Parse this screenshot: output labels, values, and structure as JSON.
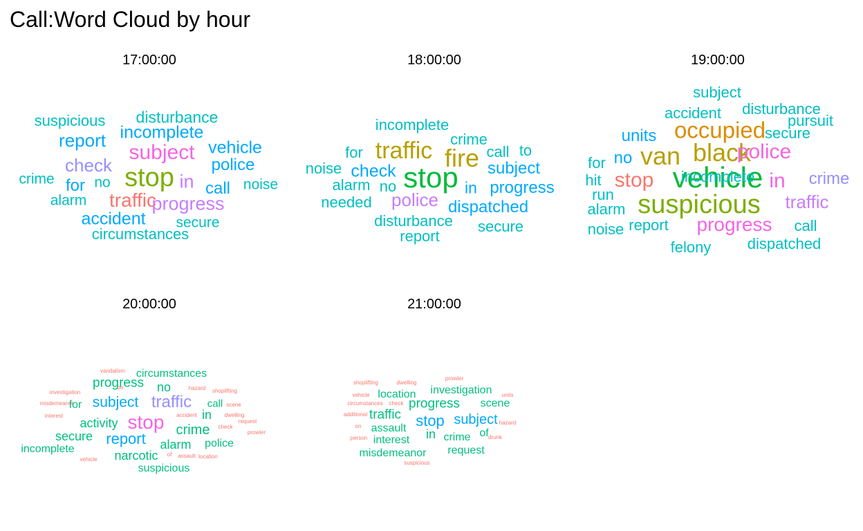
{
  "title": "Call:Word Cloud by hour",
  "chart_data": {
    "type": "word_cloud",
    "title": "Call:Word Cloud by hour",
    "panels": [
      {
        "label": "17:00:00",
        "words": [
          {
            "text": "stop",
            "color": "#7CAE00",
            "weight": 38
          },
          {
            "text": "subject",
            "color": "#F564E3",
            "weight": 30
          },
          {
            "text": "traffic",
            "color": "#F8766D",
            "weight": 28
          },
          {
            "text": "progress",
            "color": "#C77CFF",
            "weight": 27
          },
          {
            "text": "in",
            "color": "#C77CFF",
            "weight": 27
          },
          {
            "text": "check",
            "color": "#9590FF",
            "weight": 26
          },
          {
            "text": "report",
            "color": "#00A9FF",
            "weight": 26
          },
          {
            "text": "incomplete",
            "color": "#00A9FF",
            "weight": 25
          },
          {
            "text": "vehicle",
            "color": "#00A9FF",
            "weight": 25
          },
          {
            "text": "accident",
            "color": "#00A9FF",
            "weight": 25
          },
          {
            "text": "police",
            "color": "#00A9FF",
            "weight": 24
          },
          {
            "text": "call",
            "color": "#00A9FF",
            "weight": 24
          },
          {
            "text": "for",
            "color": "#00A9FF",
            "weight": 24
          },
          {
            "text": "disturbance",
            "color": "#00BFC4",
            "weight": 23
          },
          {
            "text": "suspicious",
            "color": "#00BFC4",
            "weight": 22
          },
          {
            "text": "circumstances",
            "color": "#00BFC4",
            "weight": 22
          },
          {
            "text": "secure",
            "color": "#00BFC4",
            "weight": 21
          },
          {
            "text": "noise",
            "color": "#00BFC4",
            "weight": 21
          },
          {
            "text": "crime",
            "color": "#00BFC4",
            "weight": 21
          },
          {
            "text": "alarm",
            "color": "#00BFC4",
            "weight": 21
          },
          {
            "text": "no",
            "color": "#00BFC4",
            "weight": 21
          }
        ]
      },
      {
        "label": "18:00:00",
        "words": [
          {
            "text": "stop",
            "color": "#00BA38",
            "weight": 42
          },
          {
            "text": "fire",
            "color": "#B79F00",
            "weight": 36
          },
          {
            "text": "traffic",
            "color": "#B79F00",
            "weight": 34
          },
          {
            "text": "police",
            "color": "#C77CFF",
            "weight": 26
          },
          {
            "text": "check",
            "color": "#00A9FF",
            "weight": 25
          },
          {
            "text": "dispatched",
            "color": "#00A9FF",
            "weight": 24
          },
          {
            "text": "progress",
            "color": "#00A9FF",
            "weight": 24
          },
          {
            "text": "subject",
            "color": "#00A9FF",
            "weight": 24
          },
          {
            "text": "in",
            "color": "#00A9FF",
            "weight": 23
          },
          {
            "text": "incomplete",
            "color": "#00BFC4",
            "weight": 22
          },
          {
            "text": "crime",
            "color": "#00BFC4",
            "weight": 22
          },
          {
            "text": "call",
            "color": "#00BFC4",
            "weight": 22
          },
          {
            "text": "to",
            "color": "#00BFC4",
            "weight": 22
          },
          {
            "text": "for",
            "color": "#00BFC4",
            "weight": 22
          },
          {
            "text": "noise",
            "color": "#00BFC4",
            "weight": 22
          },
          {
            "text": "alarm",
            "color": "#00BFC4",
            "weight": 22
          },
          {
            "text": "no",
            "color": "#00BFC4",
            "weight": 22
          },
          {
            "text": "needed",
            "color": "#00BFC4",
            "weight": 22
          },
          {
            "text": "disturbance",
            "color": "#00BFC4",
            "weight": 22
          },
          {
            "text": "secure",
            "color": "#00BFC4",
            "weight": 22
          },
          {
            "text": "report",
            "color": "#00BFC4",
            "weight": 22
          }
        ]
      },
      {
        "label": "19:00:00",
        "words": [
          {
            "text": "vehicle",
            "color": "#00BA38",
            "weight": 42
          },
          {
            "text": "suspicious",
            "color": "#7CAE00",
            "weight": 38
          },
          {
            "text": "black",
            "color": "#B79F00",
            "weight": 36
          },
          {
            "text": "van",
            "color": "#B79F00",
            "weight": 36
          },
          {
            "text": "occupied",
            "color": "#DE8C00",
            "weight": 33
          },
          {
            "text": "police",
            "color": "#F564E3",
            "weight": 30
          },
          {
            "text": "stop",
            "color": "#F8766D",
            "weight": 30
          },
          {
            "text": "in",
            "color": "#F564E3",
            "weight": 30
          },
          {
            "text": "progress",
            "color": "#F564E3",
            "weight": 28
          },
          {
            "text": "traffic",
            "color": "#C77CFF",
            "weight": 26
          },
          {
            "text": "crime",
            "color": "#9590FF",
            "weight": 24
          },
          {
            "text": "units",
            "color": "#00A9FF",
            "weight": 24
          },
          {
            "text": "no",
            "color": "#00A9FF",
            "weight": 24
          },
          {
            "text": "subject",
            "color": "#00BFC4",
            "weight": 22
          },
          {
            "text": "accident",
            "color": "#00BFC4",
            "weight": 22
          },
          {
            "text": "disturbance",
            "color": "#00BFC4",
            "weight": 22
          },
          {
            "text": "pursuit",
            "color": "#00BFC4",
            "weight": 22
          },
          {
            "text": "secure",
            "color": "#00BFC4",
            "weight": 22
          },
          {
            "text": "for",
            "color": "#00BFC4",
            "weight": 22
          },
          {
            "text": "hit",
            "color": "#00BFC4",
            "weight": 22
          },
          {
            "text": "run",
            "color": "#00BFC4",
            "weight": 22
          },
          {
            "text": "alarm",
            "color": "#00BFC4",
            "weight": 22
          },
          {
            "text": "noise",
            "color": "#00BFC4",
            "weight": 22
          },
          {
            "text": "report",
            "color": "#00BFC4",
            "weight": 22
          },
          {
            "text": "call",
            "color": "#00BFC4",
            "weight": 22
          },
          {
            "text": "felony",
            "color": "#00BFC4",
            "weight": 22
          },
          {
            "text": "dispatched",
            "color": "#00BFC4",
            "weight": 22
          },
          {
            "text": "incomplete",
            "color": "#00BFC4",
            "weight": 22
          }
        ]
      },
      {
        "label": "20:00:00",
        "words": [
          {
            "text": "stop",
            "color": "#F564E3",
            "weight": 28
          },
          {
            "text": "traffic",
            "color": "#9590FF",
            "weight": 24
          },
          {
            "text": "report",
            "color": "#00A9FF",
            "weight": 22
          },
          {
            "text": "subject",
            "color": "#00A9FF",
            "weight": 21
          },
          {
            "text": "crime",
            "color": "#00BF7D",
            "weight": 20
          },
          {
            "text": "progress",
            "color": "#00BF7D",
            "weight": 19
          },
          {
            "text": "activity",
            "color": "#00BF7D",
            "weight": 18
          },
          {
            "text": "narcotic",
            "color": "#00BF7D",
            "weight": 18
          },
          {
            "text": "alarm",
            "color": "#00BF7D",
            "weight": 18
          },
          {
            "text": "secure",
            "color": "#00BF7D",
            "weight": 18
          },
          {
            "text": "no",
            "color": "#00BF7D",
            "weight": 18
          },
          {
            "text": "in",
            "color": "#00BF7D",
            "weight": 18
          },
          {
            "text": "police",
            "color": "#00BF7D",
            "weight": 16
          },
          {
            "text": "incomplete",
            "color": "#00BF7D",
            "weight": 16
          },
          {
            "text": "circumstances",
            "color": "#00BF7D",
            "weight": 16
          },
          {
            "text": "suspicious",
            "color": "#00BF7D",
            "weight": 16
          },
          {
            "text": "for",
            "color": "#00BF7D",
            "weight": 16
          },
          {
            "text": "call",
            "color": "#00BF7D",
            "weight": 15
          },
          {
            "text": "vandalism",
            "color": "#F8766D",
            "weight": 8
          },
          {
            "text": "investigation",
            "color": "#F8766D",
            "weight": 8
          },
          {
            "text": "misdemeanor",
            "color": "#F8766D",
            "weight": 8
          },
          {
            "text": "interest",
            "color": "#F8766D",
            "weight": 8
          },
          {
            "text": "on",
            "color": "#F8766D",
            "weight": 8
          },
          {
            "text": "hazard",
            "color": "#F8766D",
            "weight": 8
          },
          {
            "text": "shoplifting",
            "color": "#F8766D",
            "weight": 8
          },
          {
            "text": "scene",
            "color": "#F8766D",
            "weight": 8
          },
          {
            "text": "accident",
            "color": "#F8766D",
            "weight": 8
          },
          {
            "text": "dwelling",
            "color": "#F8766D",
            "weight": 8
          },
          {
            "text": "check",
            "color": "#F8766D",
            "weight": 8
          },
          {
            "text": "request",
            "color": "#F8766D",
            "weight": 8
          },
          {
            "text": "prowler",
            "color": "#F8766D",
            "weight": 8
          },
          {
            "text": "of",
            "color": "#F8766D",
            "weight": 8
          },
          {
            "text": "assault",
            "color": "#F8766D",
            "weight": 8
          },
          {
            "text": "location",
            "color": "#F8766D",
            "weight": 8
          },
          {
            "text": "vehicle",
            "color": "#F8766D",
            "weight": 8
          }
        ]
      },
      {
        "label": "21:00:00",
        "words": [
          {
            "text": "stop",
            "color": "#00A9FF",
            "weight": 22
          },
          {
            "text": "subject",
            "color": "#00A9FF",
            "weight": 20
          },
          {
            "text": "progress",
            "color": "#00BF7D",
            "weight": 19
          },
          {
            "text": "traffic",
            "color": "#00BF7D",
            "weight": 19
          },
          {
            "text": "in",
            "color": "#00BF7D",
            "weight": 18
          },
          {
            "text": "location",
            "color": "#00BF7D",
            "weight": 16
          },
          {
            "text": "investigation",
            "color": "#00BF7D",
            "weight": 16
          },
          {
            "text": "scene",
            "color": "#00BF7D",
            "weight": 16
          },
          {
            "text": "assault",
            "color": "#00BF7D",
            "weight": 16
          },
          {
            "text": "interest",
            "color": "#00BF7D",
            "weight": 16
          },
          {
            "text": "crime",
            "color": "#00BF7D",
            "weight": 16
          },
          {
            "text": "of",
            "color": "#00BF7D",
            "weight": 16
          },
          {
            "text": "misdemeanor",
            "color": "#00BF7D",
            "weight": 16
          },
          {
            "text": "request",
            "color": "#00BF7D",
            "weight": 16
          },
          {
            "text": "shoplifting",
            "color": "#F8766D",
            "weight": 8
          },
          {
            "text": "dwelling",
            "color": "#F8766D",
            "weight": 8
          },
          {
            "text": "prowler",
            "color": "#F8766D",
            "weight": 8
          },
          {
            "text": "vehicle",
            "color": "#F8766D",
            "weight": 8
          },
          {
            "text": "units",
            "color": "#F8766D",
            "weight": 8
          },
          {
            "text": "circumstances",
            "color": "#F8766D",
            "weight": 8
          },
          {
            "text": "check",
            "color": "#F8766D",
            "weight": 8
          },
          {
            "text": "additional",
            "color": "#F8766D",
            "weight": 8
          },
          {
            "text": "hazard",
            "color": "#F8766D",
            "weight": 8
          },
          {
            "text": "on",
            "color": "#F8766D",
            "weight": 8
          },
          {
            "text": "person",
            "color": "#F8766D",
            "weight": 8
          },
          {
            "text": "drunk",
            "color": "#F8766D",
            "weight": 8
          },
          {
            "text": "suspicious",
            "color": "#F8766D",
            "weight": 8
          }
        ]
      }
    ]
  }
}
